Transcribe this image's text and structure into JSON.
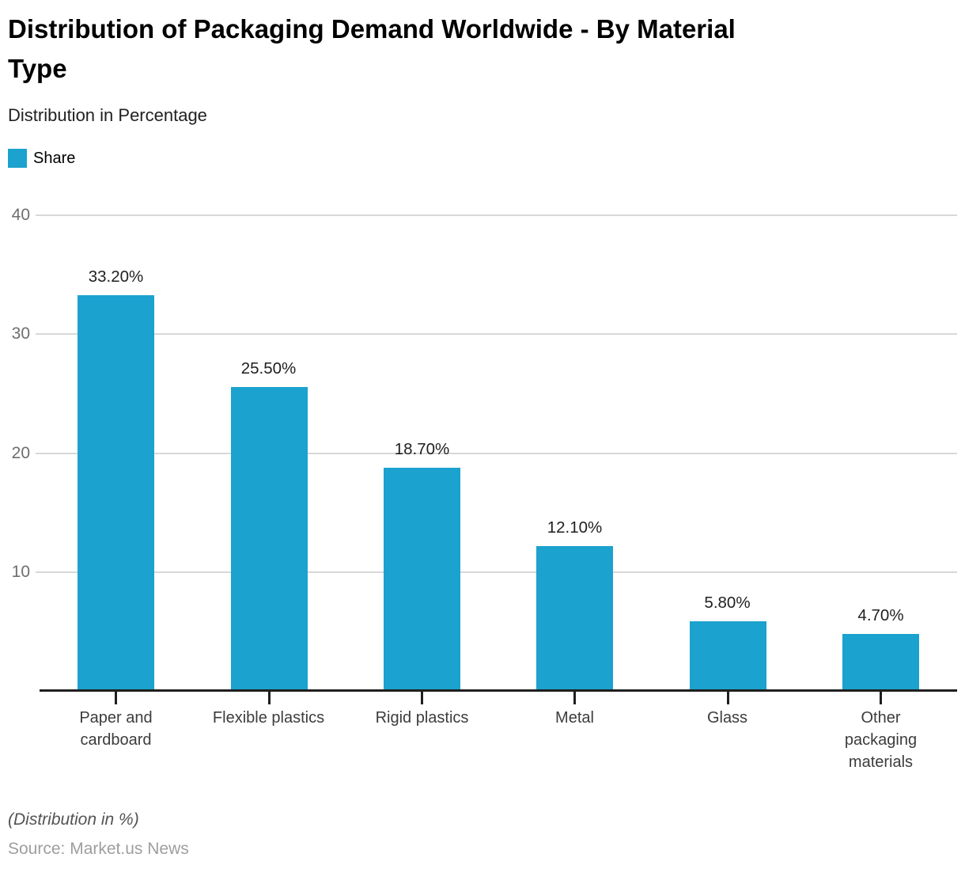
{
  "header": {
    "title": "Distribution of Packaging Demand Worldwide - By Material\nType",
    "subtitle": "Distribution in Percentage"
  },
  "legend": {
    "label": "Share",
    "color": "#1BA2CE"
  },
  "chart_data": {
    "type": "bar",
    "title": "Distribution of Packaging Demand Worldwide - By Material Type",
    "subtitle": "Distribution in Percentage",
    "categories": [
      "Paper and cardboard",
      "Flexible plastics",
      "Rigid plastics",
      "Metal",
      "Glass",
      "Other packaging materials"
    ],
    "categories_display": [
      "Paper and\ncardboard",
      "Flexible plastics",
      "Rigid plastics",
      "Metal",
      "Glass",
      "Other\npackaging\nmaterials"
    ],
    "series": [
      {
        "name": "Share",
        "color": "#1BA2CE",
        "values": [
          33.2,
          25.5,
          18.7,
          12.1,
          5.8,
          4.7
        ]
      }
    ],
    "value_labels": [
      "33.20%",
      "25.50%",
      "18.70%",
      "12.10%",
      "5.80%",
      "4.70%"
    ],
    "xlabel": "",
    "ylabel": "",
    "ylim": [
      0,
      40
    ],
    "yticks": [
      10,
      20,
      30,
      40
    ],
    "grid": true,
    "legend_position": "top-left"
  },
  "footer": {
    "note": "(Distribution in %)",
    "source": "Source: Market.us News"
  },
  "colors": {
    "bar": "#1BA2CE",
    "grid": "#D8D8D8",
    "axis": "#1F1F1F",
    "y_tick_label": "#6E6E6E",
    "category_label": "#3C3C3C",
    "value_label": "#1F1F1F",
    "note": "#545454",
    "source": "#9E9E9E"
  }
}
